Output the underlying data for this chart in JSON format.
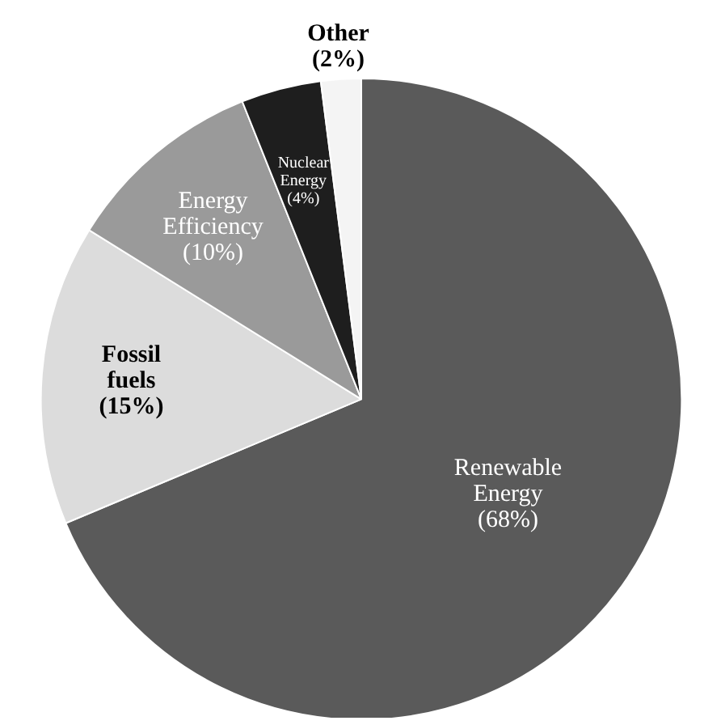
{
  "chart_data": {
    "type": "pie",
    "categories": [
      "Renewable Energy",
      "Fossil fuels",
      "Energy Efficiency",
      "Nuclear Energy",
      "Other"
    ],
    "values": [
      68,
      15,
      10,
      4,
      2
    ],
    "colors": [
      "#5a5a5a",
      "#dcdcdc",
      "#9a9a9a",
      "#1e1e1e",
      "#f4f4f4"
    ],
    "value_labels": [
      "(68%)",
      "(15%)",
      "(10%)",
      "(4%)",
      "(2%)"
    ]
  }
}
